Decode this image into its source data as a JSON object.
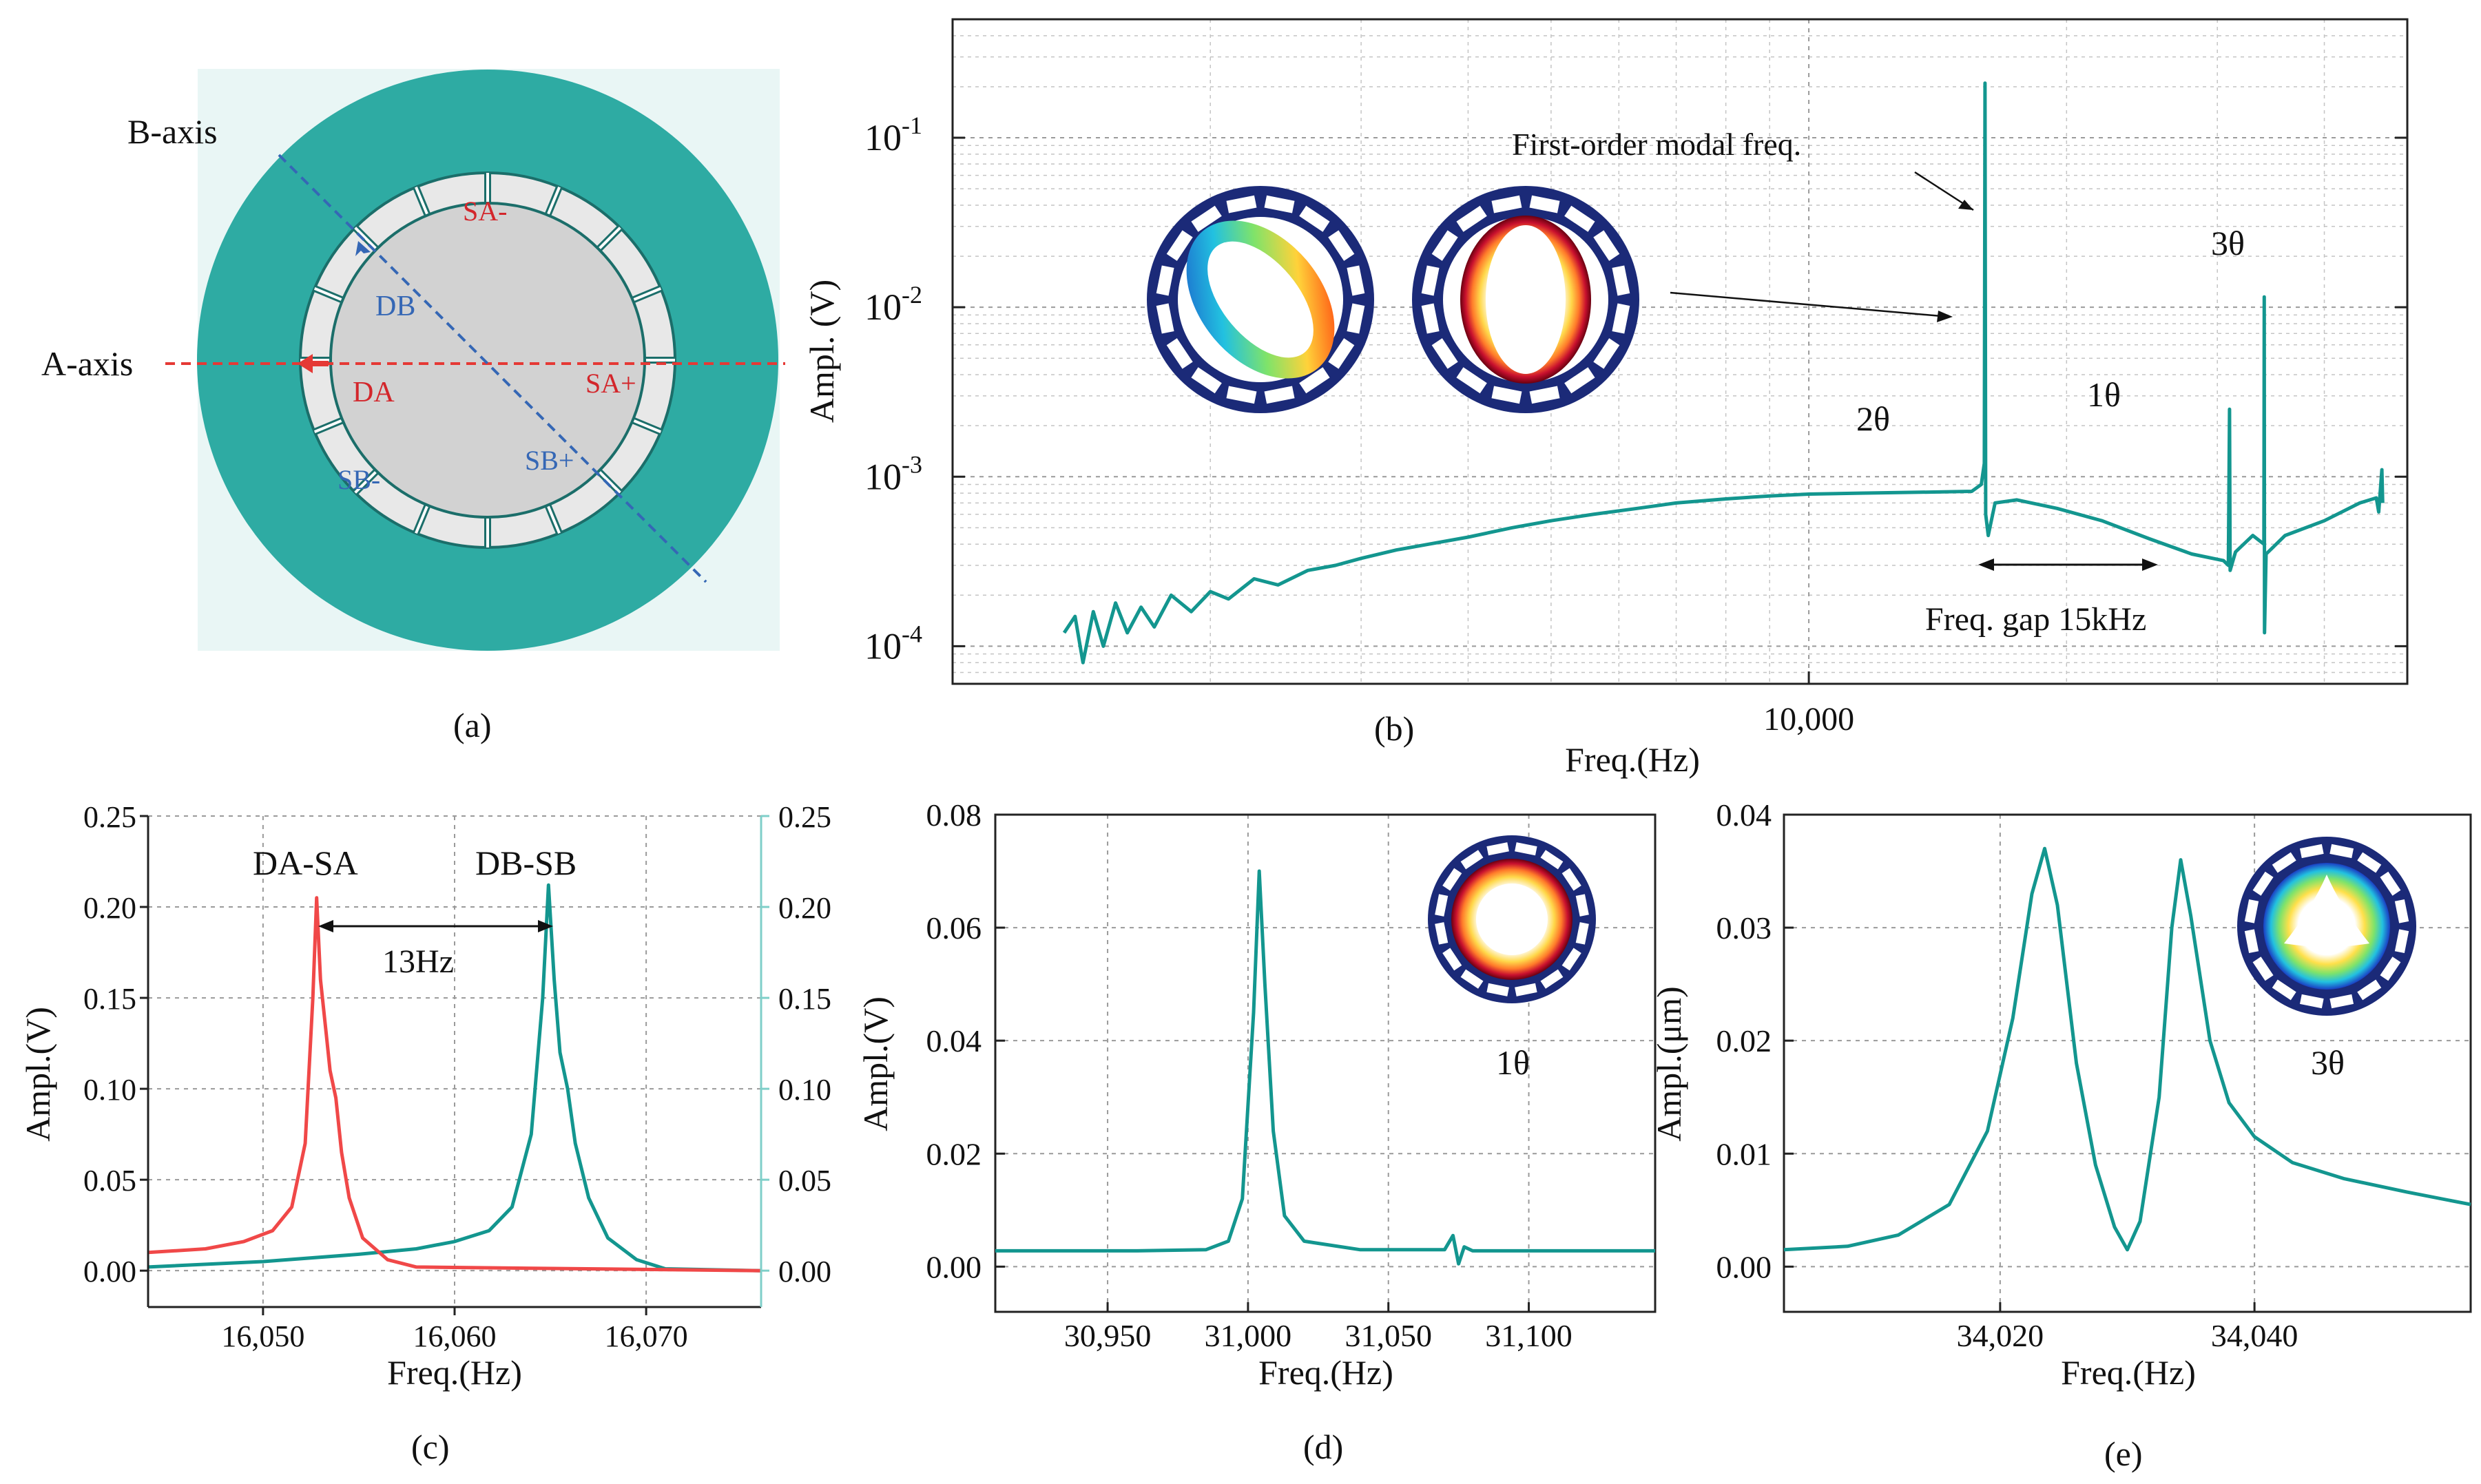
{
  "colors": {
    "teal": "#13968f",
    "red": "#f04848",
    "ringTeal": "#2eaba3",
    "navy": "#1b2a78",
    "axisA": "#e53935",
    "axisB": "#3567b5"
  },
  "panel_a": {
    "caption": "(a)",
    "b_axis_label": "B-axis",
    "a_axis_label": "A-axis",
    "electrodes": {
      "sa_minus": "SA-",
      "sa_plus": "SA+",
      "sb_minus": "SB-",
      "sb_plus": "SB+",
      "da": "DA",
      "db": "DB"
    }
  },
  "chart_data": [
    {
      "id": "b",
      "type": "line",
      "caption": "(b)",
      "xscale": "log",
      "yscale": "log",
      "xlim": [
        1000,
        50000
      ],
      "ylim": [
        6e-05,
        0.5
      ],
      "xlabel": "Freq.(Hz)",
      "ylabel": "Ampl. (V)",
      "x_ticks": [
        10000
      ],
      "x_tick_labels": [
        "10,000"
      ],
      "y_ticks": [
        0.0001,
        0.001,
        0.01,
        0.1
      ],
      "y_tick_exponents": [
        "-4",
        "-3",
        "-2",
        "-1"
      ],
      "y_tick_base": "10",
      "series": [
        {
          "name": "response",
          "points": [
            [
              1350,
              0.00012
            ],
            [
              1390,
              0.00015
            ],
            [
              1420,
              8e-05
            ],
            [
              1460,
              0.00016
            ],
            [
              1500,
              0.0001
            ],
            [
              1550,
              0.00018
            ],
            [
              1600,
              0.00012
            ],
            [
              1660,
              0.00017
            ],
            [
              1720,
              0.00013
            ],
            [
              1800,
              0.0002
            ],
            [
              1900,
              0.00016
            ],
            [
              2000,
              0.00021
            ],
            [
              2100,
              0.00019
            ],
            [
              2250,
              0.00025
            ],
            [
              2400,
              0.00023
            ],
            [
              2600,
              0.00028
            ],
            [
              2800,
              0.0003
            ],
            [
              3000,
              0.00033
            ],
            [
              3300,
              0.00037
            ],
            [
              3600,
              0.0004
            ],
            [
              4000,
              0.00044
            ],
            [
              4500,
              0.0005
            ],
            [
              5000,
              0.00055
            ],
            [
              5600,
              0.0006
            ],
            [
              6300,
              0.00065
            ],
            [
              7000,
              0.0007
            ],
            [
              8000,
              0.00074
            ],
            [
              9000,
              0.00077
            ],
            [
              10000,
              0.00079
            ],
            [
              11500,
              0.0008
            ],
            [
              13500,
              0.00081
            ],
            [
              15500,
              0.00082
            ],
            [
              15900,
              0.0009
            ],
            [
              16030,
              0.0012
            ],
            [
              16060,
              0.21
            ],
            [
              16090,
              0.0006
            ],
            [
              16200,
              0.00045
            ],
            [
              16500,
              0.0007
            ],
            [
              17500,
              0.00073
            ],
            [
              19500,
              0.00065
            ],
            [
              22000,
              0.00055
            ],
            [
              25000,
              0.00043
            ],
            [
              28000,
              0.00035
            ],
            [
              30500,
              0.00032
            ],
            [
              30900,
              0.0003
            ],
            [
              31000,
              0.0025
            ],
            [
              31050,
              0.00028
            ],
            [
              31500,
              0.00036
            ],
            [
              33000,
              0.00045
            ],
            [
              34000,
              0.0004
            ],
            [
              34030,
              0.0115
            ],
            [
              34060,
              0.00012
            ],
            [
              34200,
              0.00035
            ],
            [
              36000,
              0.00045
            ],
            [
              40000,
              0.00055
            ],
            [
              44000,
              0.0007
            ],
            [
              46000,
              0.00075
            ],
            [
              46300,
              0.00062
            ],
            [
              46700,
              0.0011
            ],
            [
              46800,
              0.0007
            ]
          ]
        }
      ],
      "annotations": {
        "first_order": "First-order modal freq.",
        "two_theta": "2θ",
        "one_theta": "1θ",
        "three_theta": "3θ",
        "gap": "Freq. gap 15kHz"
      }
    },
    {
      "id": "c",
      "type": "line",
      "caption": "(c)",
      "xlim": [
        16044,
        16076
      ],
      "ylim": [
        -0.02,
        0.25
      ],
      "xlabel": "Freq.(Hz)",
      "ylabel": "Ampl.(V)",
      "x_ticks": [
        16050,
        16060,
        16070
      ],
      "x_tick_labels": [
        "16,050",
        "16,060",
        "16,070"
      ],
      "y_ticks": [
        0,
        0.05,
        0.1,
        0.15,
        0.2,
        0.25
      ],
      "y_tick_labels": [
        "0.00",
        "0.05",
        "0.10",
        "0.15",
        "0.20",
        "0.25"
      ],
      "y2_tick_labels": [
        "0.00",
        "0.05",
        "0.10",
        "0.15",
        "0.20",
        "0.25"
      ],
      "series": [
        {
          "name": "DA-SA",
          "points": [
            [
              16044,
              0.01
            ],
            [
              16047,
              0.012
            ],
            [
              16049,
              0.016
            ],
            [
              16050.5,
              0.022
            ],
            [
              16051.5,
              0.035
            ],
            [
              16052.2,
              0.07
            ],
            [
              16052.6,
              0.15
            ],
            [
              16052.8,
              0.205
            ],
            [
              16053,
              0.16
            ],
            [
              16053.3,
              0.13
            ],
            [
              16053.5,
              0.11
            ],
            [
              16053.8,
              0.095
            ],
            [
              16054.1,
              0.065
            ],
            [
              16054.5,
              0.04
            ],
            [
              16055.2,
              0.018
            ],
            [
              16056.5,
              0.006
            ],
            [
              16058,
              0.002
            ],
            [
              16076,
              0.0
            ]
          ]
        },
        {
          "name": "DB-SB",
          "points": [
            [
              16044,
              0.002
            ],
            [
              16050,
              0.005
            ],
            [
              16055,
              0.009
            ],
            [
              16058,
              0.012
            ],
            [
              16060,
              0.016
            ],
            [
              16061.8,
              0.022
            ],
            [
              16063,
              0.035
            ],
            [
              16064,
              0.075
            ],
            [
              16064.6,
              0.15
            ],
            [
              16064.9,
              0.212
            ],
            [
              16065.2,
              0.16
            ],
            [
              16065.5,
              0.12
            ],
            [
              16065.9,
              0.1
            ],
            [
              16066.3,
              0.07
            ],
            [
              16067,
              0.04
            ],
            [
              16068,
              0.018
            ],
            [
              16069.5,
              0.006
            ],
            [
              16071,
              0.001
            ],
            [
              16076,
              0.0
            ]
          ]
        }
      ],
      "annotations": {
        "da_sa": "DA-SA",
        "db_sb": "DB-SB",
        "gap": "13Hz"
      }
    },
    {
      "id": "d",
      "type": "line",
      "caption": "(d)",
      "xlim": [
        30910,
        31145
      ],
      "ylim": [
        -0.008,
        0.08
      ],
      "xlabel": "Freq.(Hz)",
      "ylabel": "Ampl.(V)",
      "x_ticks": [
        30950,
        31000,
        31050,
        31100
      ],
      "x_tick_labels": [
        "30,950",
        "31,000",
        "31,050",
        "31,100"
      ],
      "y_ticks": [
        0,
        0.02,
        0.04,
        0.06,
        0.08
      ],
      "y_tick_labels": [
        "0.00",
        "0.02",
        "0.04",
        "0.06",
        "0.08"
      ],
      "series": [
        {
          "name": "1θ",
          "points": [
            [
              30910,
              0.0028
            ],
            [
              30960,
              0.0028
            ],
            [
              30985,
              0.003
            ],
            [
              30993,
              0.0045
            ],
            [
              30998,
              0.012
            ],
            [
              31002,
              0.045
            ],
            [
              31004,
              0.07
            ],
            [
              31006,
              0.05
            ],
            [
              31009,
              0.024
            ],
            [
              31013,
              0.009
            ],
            [
              31020,
              0.0045
            ],
            [
              31040,
              0.003
            ],
            [
              31070,
              0.003
            ],
            [
              31073,
              0.0055
            ],
            [
              31075,
              0.0005
            ],
            [
              31077,
              0.0035
            ],
            [
              31080,
              0.0028
            ],
            [
              31145,
              0.0028
            ]
          ]
        }
      ],
      "annotations": {
        "mode": "1θ"
      }
    },
    {
      "id": "e",
      "type": "line",
      "caption": "(e)",
      "xlim": [
        34003,
        34057
      ],
      "ylim": [
        -0.004,
        0.04
      ],
      "xlabel": "Freq.(Hz)",
      "ylabel": "Ampl.(μm)",
      "x_ticks": [
        34020,
        34040
      ],
      "x_tick_labels": [
        "34,020",
        "34,040"
      ],
      "y_ticks": [
        0,
        0.01,
        0.02,
        0.03,
        0.04
      ],
      "y_tick_labels": [
        "0.00",
        "0.01",
        "0.02",
        "0.03",
        "0.04"
      ],
      "series": [
        {
          "name": "3θ",
          "points": [
            [
              34003,
              0.0015
            ],
            [
              34008,
              0.0018
            ],
            [
              34012,
              0.0028
            ],
            [
              34016,
              0.0055
            ],
            [
              34019,
              0.012
            ],
            [
              34021,
              0.022
            ],
            [
              34022.5,
              0.033
            ],
            [
              34023.5,
              0.037
            ],
            [
              34024.5,
              0.032
            ],
            [
              34026,
              0.018
            ],
            [
              34027.5,
              0.009
            ],
            [
              34029,
              0.0035
            ],
            [
              34030,
              0.0015
            ],
            [
              34031,
              0.004
            ],
            [
              34032.5,
              0.015
            ],
            [
              34033.5,
              0.03
            ],
            [
              34034.2,
              0.036
            ],
            [
              34035,
              0.031
            ],
            [
              34036.5,
              0.02
            ],
            [
              34038,
              0.0145
            ],
            [
              34040,
              0.0115
            ],
            [
              34043,
              0.0092
            ],
            [
              34047,
              0.0078
            ],
            [
              34052,
              0.0066
            ],
            [
              34057,
              0.0055
            ]
          ]
        }
      ],
      "annotations": {
        "mode": "3θ"
      }
    }
  ]
}
